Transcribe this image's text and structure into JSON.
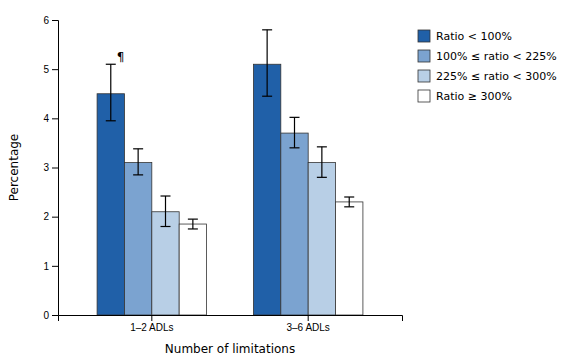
{
  "chart_data": {
    "type": "bar",
    "x_label": "Number of limitations",
    "y_label": "Percentage",
    "categories": [
      "1–2 ADLs",
      "3–6 ADLs"
    ],
    "series": [
      {
        "name": "Ratio < 100%",
        "color": "#2060a8",
        "values": [
          4.5,
          5.1
        ],
        "error_low": [
          0.55,
          0.65
        ],
        "error_high": [
          0.6,
          0.7
        ]
      },
      {
        "name": "100% ≤ ratio < 225%",
        "color": "#7ba3d0",
        "values": [
          3.1,
          3.7
        ],
        "error_low": [
          0.25,
          0.3
        ],
        "error_high": [
          0.28,
          0.32
        ]
      },
      {
        "name": "225% ≤ ratio < 300%",
        "color": "#b8cfe6",
        "values": [
          2.1,
          3.1
        ],
        "error_low": [
          0.3,
          0.3
        ],
        "error_high": [
          0.32,
          0.32
        ]
      },
      {
        "name": "Ratio ≥ 300%",
        "color": "#ffffff",
        "values": [
          1.85,
          2.3
        ],
        "error_low": [
          0.1,
          0.1
        ],
        "error_high": [
          0.1,
          0.1
        ]
      }
    ],
    "annotation": "¶",
    "ylim": [
      0,
      6
    ],
    "yticks": [
      0,
      1,
      2,
      3,
      4,
      5,
      6
    ],
    "grid": false,
    "legend": "right"
  }
}
